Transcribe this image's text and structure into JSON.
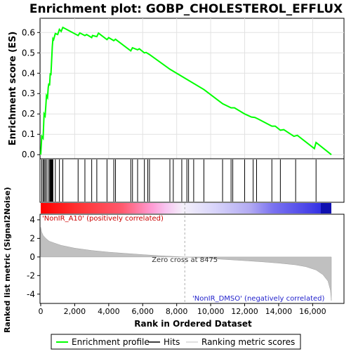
{
  "chart_data": {
    "type": "line",
    "title": "Enrichment plot: GOBP_CHOLESTEROL_EFFLUX",
    "top_panel": {
      "ylabel": "Enrichment score (ES)",
      "ylim": [
        -0.02,
        0.67
      ],
      "yticks": [
        "0.0",
        "0.1",
        "0.2",
        "0.3",
        "0.4",
        "0.5",
        "0.6"
      ],
      "ytick_values": [
        0.0,
        0.1,
        0.2,
        0.3,
        0.4,
        0.5,
        0.6
      ],
      "series": [
        {
          "name": "Enrichment profile",
          "color": "#00ff00",
          "x": [
            0,
            60,
            140,
            200,
            260,
            300,
            340,
            400,
            440,
            480,
            520,
            560,
            600,
            640,
            680,
            720,
            760,
            860,
            1000,
            1100,
            1200,
            1300,
            2200,
            2300,
            2600,
            2700,
            3000,
            3050,
            3300,
            3400,
            3900,
            4000,
            4300,
            4400,
            5300,
            5400,
            5700,
            5800,
            6100,
            6200,
            6400,
            7600,
            8400,
            9600,
            10700,
            11200,
            11400,
            12000,
            12400,
            12600,
            12800,
            13600,
            13800,
            14100,
            14300,
            14900,
            15100,
            16100,
            16200,
            17100
          ],
          "y": [
            0.0,
            0.09,
            0.08,
            0.2,
            0.19,
            0.24,
            0.29,
            0.28,
            0.33,
            0.35,
            0.34,
            0.4,
            0.39,
            0.46,
            0.53,
            0.57,
            0.565,
            0.595,
            0.59,
            0.615,
            0.605,
            0.625,
            0.585,
            0.598,
            0.585,
            0.59,
            0.575,
            0.585,
            0.58,
            0.597,
            0.565,
            0.575,
            0.56,
            0.567,
            0.51,
            0.525,
            0.515,
            0.52,
            0.5,
            0.502,
            0.492,
            0.42,
            0.38,
            0.32,
            0.25,
            0.23,
            0.23,
            0.2,
            0.185,
            0.183,
            0.175,
            0.14,
            0.14,
            0.12,
            0.123,
            0.09,
            0.095,
            0.03,
            0.06,
            0.0
          ]
        }
      ]
    },
    "hits": {
      "name": "Hits",
      "positions": [
        60,
        140,
        200,
        260,
        340,
        440,
        520,
        560,
        600,
        640,
        680,
        720,
        860,
        1100,
        1300,
        2200,
        2600,
        3000,
        3300,
        3900,
        4300,
        4400,
        5300,
        5400,
        5700,
        6100,
        6300,
        6400,
        7600,
        7800,
        8300,
        8600,
        8700,
        9000,
        9600,
        10700,
        11200,
        11300,
        12000,
        12500,
        12700,
        13600,
        14100,
        15000,
        16200
      ]
    },
    "ranking_panel": {
      "ylabel": "Ranked list metric (Signal2Noise)",
      "xlabel": "Rank in Ordered Dataset",
      "xlim": [
        0,
        17800
      ],
      "ylim": [
        -5.0,
        4.6
      ],
      "xticks": [
        "0",
        "2,000",
        "4,000",
        "6,000",
        "8,000",
        "10,000",
        "12,000",
        "14,000",
        "16,000"
      ],
      "xtick_values": [
        0,
        2000,
        4000,
        6000,
        8000,
        10000,
        12000,
        14000,
        16000
      ],
      "yticks": [
        "4",
        "2",
        "0",
        "-2",
        "-4"
      ],
      "ytick_values": [
        4,
        2,
        0,
        -2,
        -4
      ],
      "series": [
        {
          "name": "Ranking metric scores",
          "color": "#c0c0c0",
          "x": [
            0,
            50,
            150,
            300,
            500,
            800,
            1200,
            2000,
            3000,
            4000,
            5000,
            6000,
            7000,
            8000,
            8475,
            9000,
            10000,
            11000,
            12000,
            13000,
            14000,
            15000,
            15600,
            16200,
            16600,
            16900,
            17050,
            17100
          ],
          "y": [
            3.2,
            2.7,
            2.3,
            2.0,
            1.7,
            1.5,
            1.25,
            0.95,
            0.7,
            0.52,
            0.38,
            0.25,
            0.13,
            0.04,
            0.0,
            -0.06,
            -0.17,
            -0.28,
            -0.4,
            -0.52,
            -0.66,
            -0.85,
            -1.05,
            -1.4,
            -1.9,
            -2.6,
            -3.6,
            -4.7
          ]
        }
      ],
      "zero_cross_label": "Zero cross at 8475",
      "zero_cross": 8475,
      "positive_label": "'NonIR_A10' (positively correlated)",
      "negative_label": "'NonIR_DMSO' (negatively correlated)",
      "positive_color": "#ff0000",
      "negative_color": "#3333ff"
    },
    "legend": {
      "placement": "bottom",
      "entries": [
        {
          "label": "Enrichment profile",
          "color": "#00ff00"
        },
        {
          "label": "Hits",
          "color": "#000000"
        },
        {
          "label": "Ranking metric scores",
          "color": "#c0c0c0"
        }
      ]
    },
    "n_total": 17100
  }
}
